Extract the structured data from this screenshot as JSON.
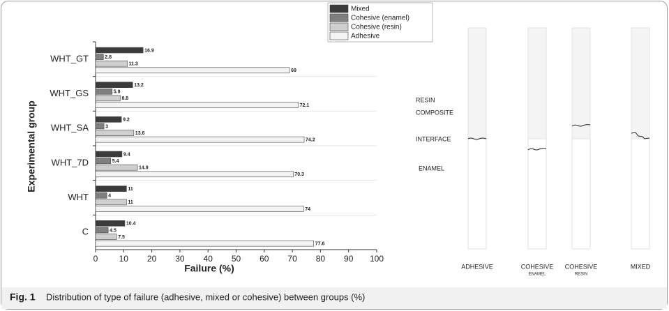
{
  "chart_data": {
    "type": "bar",
    "orientation": "horizontal",
    "categories": [
      "WHT_GT",
      "WHT_GS",
      "WHT_SA",
      "WHT_7D",
      "WHT",
      "C"
    ],
    "series": [
      {
        "name": "Mixed",
        "color": "#3b3b3b",
        "values": [
          16.9,
          13.2,
          9.2,
          9.4,
          11,
          10.4
        ]
      },
      {
        "name": "Cohesive (enamel)",
        "color": "#7f7f7f",
        "values": [
          2.8,
          5.9,
          3,
          5.4,
          4,
          4.5
        ]
      },
      {
        "name": "Cohesive (resin)",
        "color": "#cfcfcf",
        "values": [
          11.3,
          8.8,
          13.6,
          14.9,
          11,
          7.5
        ]
      },
      {
        "name": "Adhesive",
        "color": "#f3f3f3",
        "values": [
          69,
          72.1,
          74.2,
          70.3,
          74,
          77.6
        ]
      }
    ],
    "xlabel": "Failure (%)",
    "ylabel": "Experimental group",
    "xlim": [
      0,
      100
    ],
    "xticks": [
      0,
      10,
      20,
      30,
      40,
      50,
      60,
      70,
      80,
      90,
      100
    ],
    "legend": "top-right"
  },
  "diagram": {
    "zones": [
      "RESIN",
      "COMPOSITE",
      "INTERFACE",
      "ENAMEL"
    ],
    "specimens": [
      {
        "label": "ADHESIVE"
      },
      {
        "label": "COHESIVE",
        "sublabel": "ENAMEL"
      },
      {
        "label": "COHESIVE",
        "sublabel": "RESIN"
      },
      {
        "label": "MIXED"
      }
    ]
  },
  "caption": {
    "label": "Fig. 1",
    "text": "Distribution of type of failure (adhesive, mixed or cohesive) between groups (%)"
  }
}
